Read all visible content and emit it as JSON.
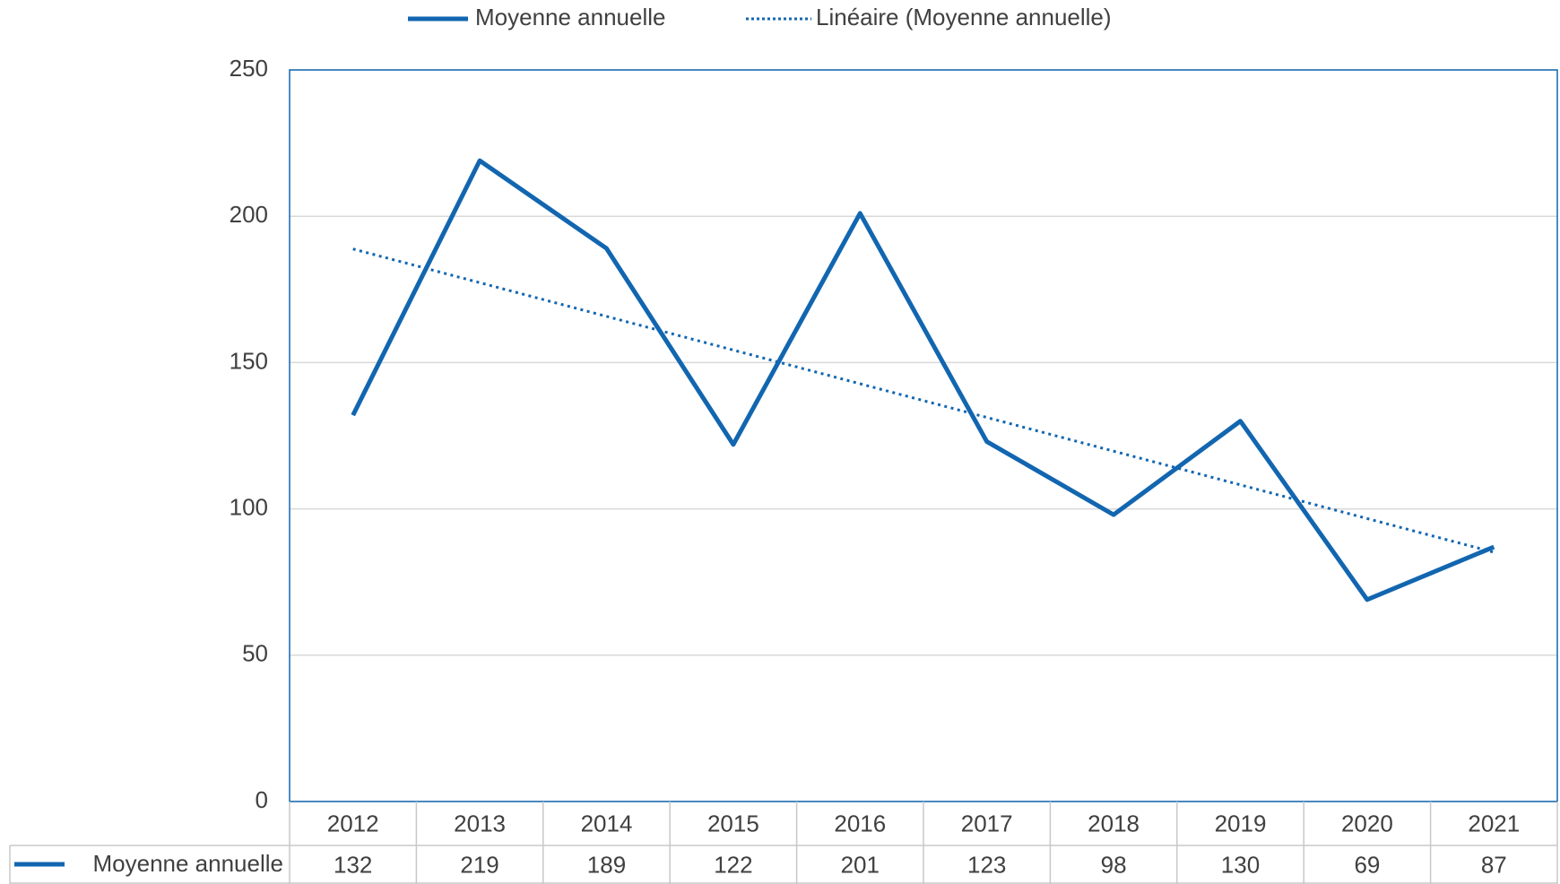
{
  "chart_data": {
    "type": "line",
    "categories": [
      "2012",
      "2013",
      "2014",
      "2015",
      "2016",
      "2017",
      "2018",
      "2019",
      "2020",
      "2021"
    ],
    "series": [
      {
        "name": "Moyenne annuelle",
        "color": "#1266b0",
        "values": [
          132,
          219,
          189,
          122,
          201,
          123,
          98,
          130,
          69,
          87
        ]
      }
    ],
    "trendline": {
      "name": "Linéaire (Moyenne annuelle)",
      "type": "linear"
    },
    "ylim": [
      0,
      250
    ],
    "yticks": [
      0,
      50,
      100,
      150,
      200,
      250
    ],
    "grid": true,
    "data_table": true
  }
}
